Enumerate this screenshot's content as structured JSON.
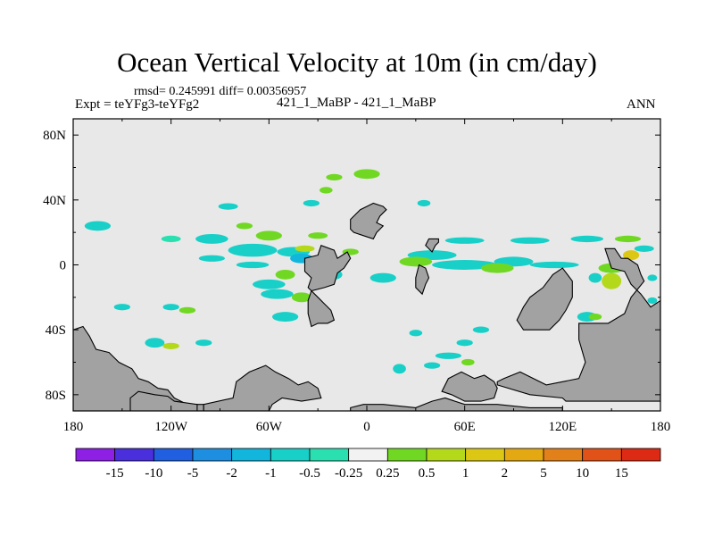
{
  "chart_data": {
    "type": "heatmap",
    "title": "Ocean Vertical Velocity at 10m (in cm/day)",
    "stats_text": "rmsd= 0.245991 diff= 0.00356957",
    "experiment_text": "Expt = teYFg3-teYFg2",
    "center_label": "421_1_MaBP - 421_1_MaBP",
    "season_label": "ANN",
    "xlim": [
      -180,
      180
    ],
    "ylim": [
      -90,
      90
    ],
    "x_ticks": [
      {
        "value": -180,
        "label": "180"
      },
      {
        "value": -120,
        "label": "120W"
      },
      {
        "value": -60,
        "label": "60W"
      },
      {
        "value": 0,
        "label": "0"
      },
      {
        "value": 60,
        "label": "60E"
      },
      {
        "value": 120,
        "label": "120E"
      },
      {
        "value": 180,
        "label": "180"
      }
    ],
    "y_ticks": [
      {
        "value": 80,
        "label": "80N"
      },
      {
        "value": 40,
        "label": "40N"
      },
      {
        "value": 0,
        "label": "0"
      },
      {
        "value": -40,
        "label": "40S"
      },
      {
        "value": -80,
        "label": "80S"
      }
    ],
    "colorbar": {
      "boundaries": [
        "-15",
        "-10",
        "-5",
        "-2",
        "-1",
        "-0.5",
        "-0.25",
        "0.25",
        "0.5",
        "1",
        "2",
        "5",
        "10",
        "15"
      ],
      "colors": [
        "#8e1fe5",
        "#4a2fdc",
        "#1f5fe0",
        "#1e8fe0",
        "#12b5dc",
        "#18d0c8",
        "#2be0b0",
        "#f2f2f2",
        "#70d822",
        "#b4d81a",
        "#dcc814",
        "#e4a812",
        "#e2801a",
        "#e05218",
        "#dc2a14"
      ]
    },
    "land_color": "#a2a2a2",
    "ocean_color": "#e8e8e8",
    "land_polygons": [
      [
        [
          -180,
          -40
        ],
        [
          -174,
          -38
        ],
        [
          -170,
          -44
        ],
        [
          -166,
          -52
        ],
        [
          -158,
          -54
        ],
        [
          -152,
          -60
        ],
        [
          -144,
          -64
        ],
        [
          -140,
          -70
        ],
        [
          -134,
          -72
        ],
        [
          -128,
          -76
        ],
        [
          -122,
          -77
        ],
        [
          -118,
          -82
        ],
        [
          -110,
          -86
        ],
        [
          -100,
          -86
        ],
        [
          -100,
          -90
        ],
        [
          -180,
          -90
        ]
      ],
      [
        [
          -145,
          -82
        ],
        [
          -140,
          -78
        ],
        [
          -130,
          -80
        ],
        [
          -122,
          -81
        ],
        [
          -118,
          -84
        ],
        [
          -104,
          -86
        ],
        [
          -104,
          -90
        ],
        [
          -145,
          -90
        ]
      ],
      [
        [
          -80,
          -72
        ],
        [
          -72,
          -66
        ],
        [
          -62,
          -62
        ],
        [
          -56,
          -66
        ],
        [
          -48,
          -70
        ],
        [
          -42,
          -74
        ],
        [
          -36,
          -72
        ],
        [
          -30,
          -76
        ],
        [
          -28,
          -82
        ],
        [
          -40,
          -84
        ],
        [
          -52,
          -82
        ],
        [
          -58,
          -86
        ],
        [
          -60,
          -90
        ],
        [
          -100,
          -90
        ],
        [
          -100,
          -86
        ],
        [
          -82,
          -82
        ]
      ],
      [
        [
          -20,
          -12
        ],
        [
          -18,
          -5
        ],
        [
          -14,
          -2
        ],
        [
          -10,
          4
        ],
        [
          -12,
          8
        ],
        [
          -18,
          4
        ],
        [
          -20,
          9
        ],
        [
          -28,
          12
        ],
        [
          -30,
          6
        ],
        [
          -38,
          4
        ],
        [
          -38,
          -4
        ],
        [
          -34,
          -8
        ],
        [
          -36,
          -14
        ],
        [
          -30,
          -20
        ],
        [
          -26,
          -24
        ],
        [
          -22,
          -28
        ],
        [
          -20,
          -34
        ],
        [
          -24,
          -36
        ],
        [
          -30,
          -36
        ],
        [
          -34,
          -38
        ],
        [
          -36,
          -30
        ],
        [
          -36,
          -22
        ],
        [
          -34,
          -16
        ],
        [
          -26,
          -14
        ]
      ],
      [
        [
          -10,
          28
        ],
        [
          -6,
          32
        ],
        [
          -4,
          34
        ],
        [
          0,
          36
        ],
        [
          4,
          38
        ],
        [
          10,
          36
        ],
        [
          12,
          34
        ],
        [
          8,
          30
        ],
        [
          6,
          26
        ],
        [
          10,
          24
        ],
        [
          6,
          20
        ],
        [
          4,
          16
        ],
        [
          -2,
          18
        ],
        [
          -8,
          20
        ],
        [
          -10,
          22
        ]
      ],
      [
        [
          96,
          -40
        ],
        [
          92,
          -34
        ],
        [
          96,
          -26
        ],
        [
          100,
          -20
        ],
        [
          108,
          -14
        ],
        [
          114,
          -6
        ],
        [
          120,
          -2
        ],
        [
          126,
          -10
        ],
        [
          126,
          -20
        ],
        [
          122,
          -28
        ],
        [
          118,
          -34
        ],
        [
          112,
          -40
        ],
        [
          104,
          -40
        ]
      ],
      [
        [
          130,
          -36
        ],
        [
          130,
          -46
        ],
        [
          134,
          -60
        ],
        [
          130,
          -70
        ],
        [
          120,
          -72
        ],
        [
          110,
          -74
        ],
        [
          94,
          -66
        ],
        [
          84,
          -70
        ],
        [
          80,
          -72
        ],
        [
          80,
          -74
        ],
        [
          100,
          -80
        ],
        [
          120,
          -82
        ],
        [
          122,
          -84
        ],
        [
          180,
          -84
        ],
        [
          180,
          -22
        ],
        [
          174,
          -26
        ],
        [
          168,
          -18
        ],
        [
          162,
          -12
        ],
        [
          160,
          -8
        ],
        [
          158,
          -4
        ],
        [
          150,
          -2
        ],
        [
          146,
          10
        ],
        [
          152,
          10
        ],
        [
          156,
          4
        ],
        [
          160,
          4
        ],
        [
          166,
          0
        ],
        [
          168,
          -6
        ],
        [
          170,
          -10
        ],
        [
          162,
          -20
        ],
        [
          158,
          -30
        ],
        [
          148,
          -36
        ]
      ],
      [
        [
          50,
          -70
        ],
        [
          58,
          -66
        ],
        [
          66,
          -70
        ],
        [
          72,
          -68
        ],
        [
          78,
          -72
        ],
        [
          80,
          -76
        ],
        [
          78,
          -82
        ],
        [
          70,
          -84
        ],
        [
          60,
          -84
        ],
        [
          52,
          -80
        ],
        [
          46,
          -78
        ]
      ],
      [
        [
          -10,
          -88
        ],
        [
          -2,
          -86
        ],
        [
          10,
          -86
        ],
        [
          30,
          -88
        ],
        [
          40,
          -84
        ],
        [
          48,
          -82
        ],
        [
          60,
          -86
        ],
        [
          80,
          -86
        ],
        [
          100,
          -88
        ],
        [
          120,
          -88
        ],
        [
          120,
          -90
        ],
        [
          -10,
          -90
        ]
      ],
      [
        [
          34,
          -18
        ],
        [
          36,
          -12
        ],
        [
          38,
          -8
        ],
        [
          36,
          -2
        ],
        [
          32,
          0
        ],
        [
          30,
          -8
        ],
        [
          30,
          -14
        ]
      ],
      [
        [
          40,
          8
        ],
        [
          42,
          12
        ],
        [
          44,
          14
        ],
        [
          44,
          16
        ],
        [
          38,
          16
        ],
        [
          36,
          12
        ]
      ]
    ],
    "anomaly_blobs": [
      {
        "lon": -165,
        "lat": 24,
        "w": 8,
        "h": 3,
        "bin": 5
      },
      {
        "lon": -120,
        "lat": 16,
        "w": 6,
        "h": 2,
        "bin": 6
      },
      {
        "lon": -20,
        "lat": 54,
        "w": 5,
        "h": 2,
        "bin": 8
      },
      {
        "lon": 0,
        "lat": 56,
        "w": 8,
        "h": 3,
        "bin": 8
      },
      {
        "lon": -34,
        "lat": 38,
        "w": 5,
        "h": 2,
        "bin": 5
      },
      {
        "lon": -85,
        "lat": 36,
        "w": 6,
        "h": 2,
        "bin": 5
      },
      {
        "lon": -25,
        "lat": 46,
        "w": 4,
        "h": 2,
        "bin": 8
      },
      {
        "lon": 35,
        "lat": 38,
        "w": 4,
        "h": 2,
        "bin": 5
      },
      {
        "lon": -75,
        "lat": 24,
        "w": 5,
        "h": 2,
        "bin": 8
      },
      {
        "lon": -95,
        "lat": 16,
        "w": 10,
        "h": 3,
        "bin": 5
      },
      {
        "lon": -60,
        "lat": 18,
        "w": 8,
        "h": 3,
        "bin": 8
      },
      {
        "lon": -30,
        "lat": 18,
        "w": 6,
        "h": 2,
        "bin": 8
      },
      {
        "lon": 60,
        "lat": 15,
        "w": 12,
        "h": 2,
        "bin": 5
      },
      {
        "lon": 100,
        "lat": 15,
        "w": 12,
        "h": 2,
        "bin": 5
      },
      {
        "lon": 135,
        "lat": 16,
        "w": 10,
        "h": 2,
        "bin": 5
      },
      {
        "lon": 160,
        "lat": 16,
        "w": 8,
        "h": 2,
        "bin": 8
      },
      {
        "lon": 170,
        "lat": 10,
        "w": 6,
        "h": 2,
        "bin": 5
      },
      {
        "lon": -70,
        "lat": 9,
        "w": 15,
        "h": 4,
        "bin": 5
      },
      {
        "lon": -45,
        "lat": 8,
        "w": 10,
        "h": 3,
        "bin": 5
      },
      {
        "lon": -40,
        "lat": 4,
        "w": 7,
        "h": 3,
        "bin": 4
      },
      {
        "lon": -28,
        "lat": 4,
        "w": 6,
        "h": 2,
        "bin": 9
      },
      {
        "lon": -38,
        "lat": 10,
        "w": 6,
        "h": 2,
        "bin": 9
      },
      {
        "lon": -10,
        "lat": 8,
        "w": 5,
        "h": 2,
        "bin": 8
      },
      {
        "lon": -70,
        "lat": 0,
        "w": 10,
        "h": 2,
        "bin": 5
      },
      {
        "lon": -95,
        "lat": 4,
        "w": 8,
        "h": 2,
        "bin": 5
      },
      {
        "lon": 40,
        "lat": 6,
        "w": 15,
        "h": 3,
        "bin": 5
      },
      {
        "lon": 30,
        "lat": 2,
        "w": 10,
        "h": 3,
        "bin": 8
      },
      {
        "lon": 60,
        "lat": 0,
        "w": 20,
        "h": 3,
        "bin": 5
      },
      {
        "lon": 90,
        "lat": 2,
        "w": 12,
        "h": 3,
        "bin": 5
      },
      {
        "lon": 80,
        "lat": -2,
        "w": 10,
        "h": 3,
        "bin": 8
      },
      {
        "lon": 115,
        "lat": 0,
        "w": 15,
        "h": 2,
        "bin": 5
      },
      {
        "lon": 150,
        "lat": -2,
        "w": 8,
        "h": 3,
        "bin": 8
      },
      {
        "lon": 150,
        "lat": -10,
        "w": 6,
        "h": 5,
        "bin": 9
      },
      {
        "lon": 162,
        "lat": 6,
        "w": 5,
        "h": 3,
        "bin": 10
      },
      {
        "lon": 140,
        "lat": -8,
        "w": 4,
        "h": 3,
        "bin": 5
      },
      {
        "lon": -20,
        "lat": -6,
        "w": 5,
        "h": 3,
        "bin": 5
      },
      {
        "lon": 10,
        "lat": -8,
        "w": 8,
        "h": 3,
        "bin": 5
      },
      {
        "lon": -50,
        "lat": -6,
        "w": 6,
        "h": 3,
        "bin": 8
      },
      {
        "lon": -60,
        "lat": -12,
        "w": 10,
        "h": 3,
        "bin": 5
      },
      {
        "lon": -55,
        "lat": -18,
        "w": 10,
        "h": 3,
        "bin": 5
      },
      {
        "lon": -40,
        "lat": -20,
        "w": 6,
        "h": 3,
        "bin": 8
      },
      {
        "lon": -50,
        "lat": -32,
        "w": 8,
        "h": 3,
        "bin": 5
      },
      {
        "lon": -150,
        "lat": -26,
        "w": 5,
        "h": 2,
        "bin": 5
      },
      {
        "lon": -120,
        "lat": -26,
        "w": 5,
        "h": 2,
        "bin": 5
      },
      {
        "lon": -110,
        "lat": -28,
        "w": 5,
        "h": 2,
        "bin": 8
      },
      {
        "lon": -130,
        "lat": -48,
        "w": 6,
        "h": 3,
        "bin": 5
      },
      {
        "lon": -120,
        "lat": -50,
        "w": 5,
        "h": 2,
        "bin": 9
      },
      {
        "lon": -100,
        "lat": -48,
        "w": 5,
        "h": 2,
        "bin": 5
      },
      {
        "lon": 50,
        "lat": -56,
        "w": 8,
        "h": 2,
        "bin": 5
      },
      {
        "lon": 60,
        "lat": -48,
        "w": 5,
        "h": 2,
        "bin": 5
      },
      {
        "lon": 40,
        "lat": -62,
        "w": 5,
        "h": 2,
        "bin": 5
      },
      {
        "lon": 62,
        "lat": -60,
        "w": 4,
        "h": 2,
        "bin": 8
      },
      {
        "lon": 20,
        "lat": -64,
        "w": 4,
        "h": 3,
        "bin": 5
      },
      {
        "lon": 100,
        "lat": -30,
        "w": 6,
        "h": 2,
        "bin": 5
      },
      {
        "lon": 135,
        "lat": -32,
        "w": 6,
        "h": 3,
        "bin": 5
      },
      {
        "lon": 140,
        "lat": -32,
        "w": 4,
        "h": 2,
        "bin": 8
      },
      {
        "lon": 165,
        "lat": -26,
        "w": 5,
        "h": 3,
        "bin": 8
      },
      {
        "lon": 175,
        "lat": -22,
        "w": 3,
        "h": 2,
        "bin": 5
      },
      {
        "lon": 175,
        "lat": -8,
        "w": 3,
        "h": 2,
        "bin": 5
      },
      {
        "lon": 70,
        "lat": -40,
        "w": 5,
        "h": 2,
        "bin": 5
      },
      {
        "lon": 30,
        "lat": -42,
        "w": 4,
        "h": 2,
        "bin": 5
      }
    ]
  }
}
